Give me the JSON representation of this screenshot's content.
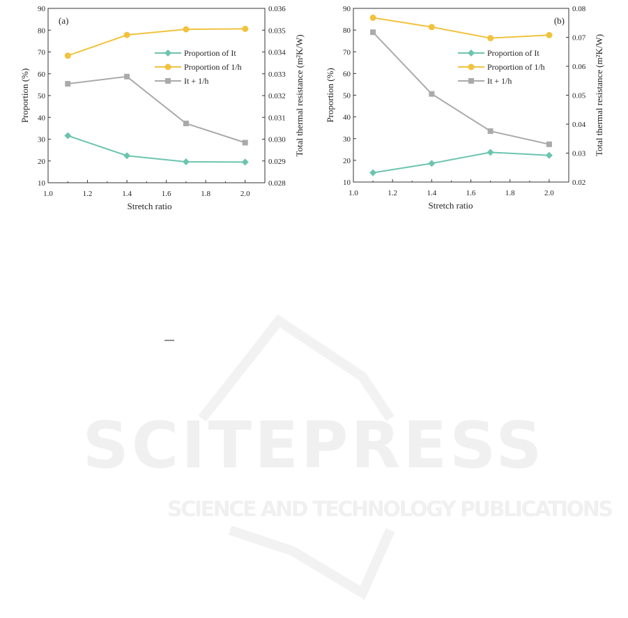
{
  "chart_data": [
    {
      "type": "line",
      "panel_label": "(a)",
      "xlabel": "Stretch ratio",
      "ylabel": "Proportion (%)",
      "ylabel_right": "Total thermal resistance (m²K/W)",
      "xlim": [
        1.0,
        2.1
      ],
      "ylim": [
        10,
        90
      ],
      "ylim_right": [
        0.028,
        0.036
      ],
      "xticks": [
        "1.0",
        "1.2",
        "1.4",
        "1.6",
        "1.8",
        "2.0"
      ],
      "yticks": [
        "10",
        "20",
        "30",
        "40",
        "50",
        "60",
        "70",
        "80",
        "90"
      ],
      "yticks_right": [
        "0.028",
        "0.029",
        "0.030",
        "0.031",
        "0.032",
        "0.033",
        "0.034",
        "0.035",
        "0.036"
      ],
      "x": [
        1.1,
        1.4,
        1.7,
        2.0
      ],
      "legend_placement": "center-right",
      "series": [
        {
          "name": "Proportion of It",
          "axis": "left",
          "marker": "diamond",
          "color": "#6cc4b0",
          "values": [
            31.6,
            22.4,
            19.6,
            19.5
          ]
        },
        {
          "name": "Proportion of 1/h",
          "axis": "left",
          "marker": "circle",
          "color": "#f2c23e",
          "values": [
            68.3,
            77.8,
            80.4,
            80.6
          ]
        },
        {
          "name": "It + 1/h",
          "axis": "right",
          "marker": "square",
          "color": "#aaaaaa",
          "values": [
            0.03254,
            0.03287,
            0.03072,
            0.02984
          ]
        }
      ]
    },
    {
      "type": "line",
      "panel_label": "(b)",
      "xlabel": "Stretch ratio",
      "ylabel": "Proportion (%)",
      "ylabel_right": "Total thermal resistance (m²K/W)",
      "xlim": [
        1.0,
        2.1
      ],
      "ylim": [
        10,
        90
      ],
      "ylim_right": [
        0.02,
        0.08
      ],
      "xticks": [
        "1.0",
        "1.2",
        "1.4",
        "1.6",
        "1.8",
        "2.0"
      ],
      "yticks": [
        "10",
        "20",
        "30",
        "40",
        "50",
        "60",
        "70",
        "80",
        "90"
      ],
      "yticks_right": [
        "0.02",
        "0.03",
        "0.04",
        "0.05",
        "0.06",
        "0.07",
        "0.08"
      ],
      "x": [
        1.1,
        1.4,
        1.7,
        2.0
      ],
      "legend_placement": "center-right",
      "series": [
        {
          "name": "Proportion of It",
          "axis": "left",
          "marker": "diamond",
          "color": "#6cc4b0",
          "values": [
            14.3,
            18.6,
            23.7,
            22.3
          ]
        },
        {
          "name": "Proportion of 1/h",
          "axis": "left",
          "marker": "circle",
          "color": "#f2c23e",
          "values": [
            85.7,
            81.4,
            76.3,
            77.7
          ]
        },
        {
          "name": "It + 1/h",
          "axis": "right",
          "marker": "square",
          "color": "#aaaaaa",
          "values": [
            0.07175,
            0.05045,
            0.0376,
            0.03305
          ]
        }
      ]
    }
  ],
  "watermark": {
    "title": "SCITEPRESS",
    "subtitle": "SCIENCE AND TECHNOLOGY PUBLICATIONS"
  }
}
